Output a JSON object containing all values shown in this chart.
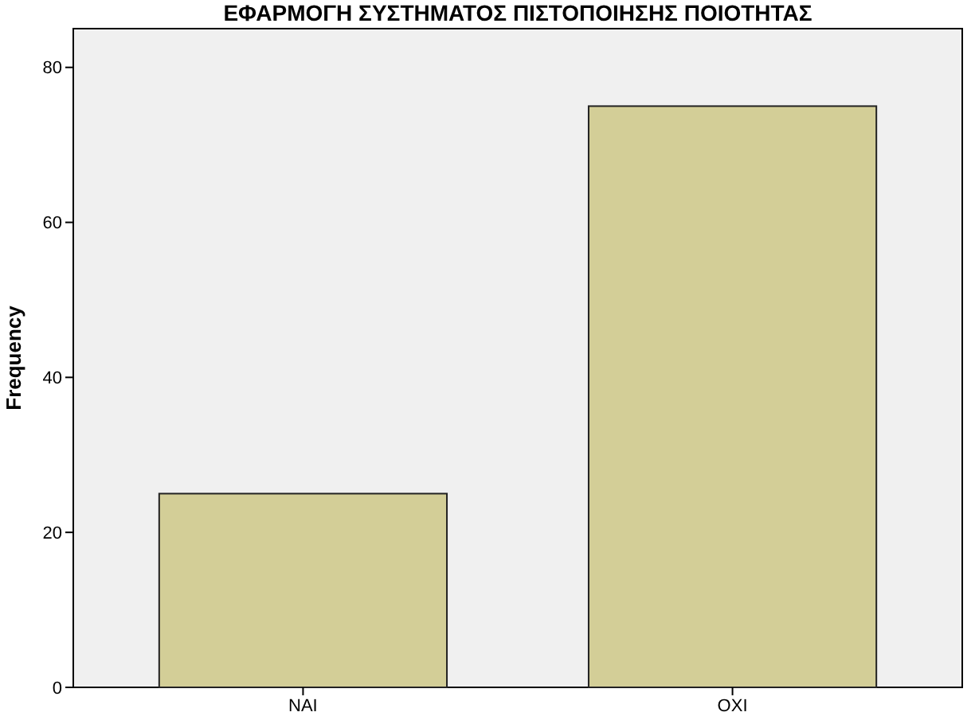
{
  "chart_data": {
    "type": "bar",
    "title": "ΕΦΑΡΜΟΓΗ ΣΥΣΤΗΜΑΤΟΣ ΠΙΣΤΟΠΟΙΗΣΗΣ ΠΟΙΟΤΗΤΑΣ",
    "ylabel": "Frequency",
    "categories": [
      "ΝΑΙ",
      "ΟΧΙ"
    ],
    "values": [
      25,
      75
    ],
    "color": "#d3ce97",
    "ylim": [
      0,
      85
    ],
    "yticks": [
      0,
      20,
      40,
      60,
      80
    ]
  }
}
